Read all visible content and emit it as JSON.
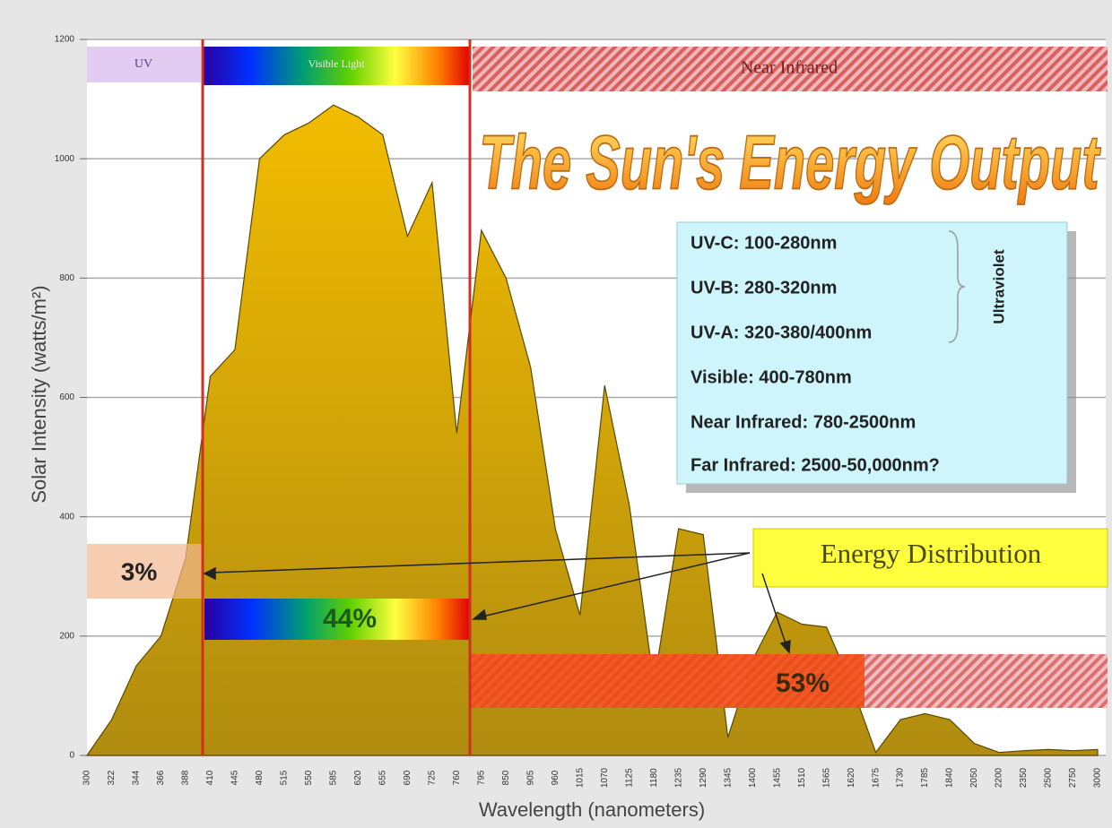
{
  "chart_data": {
    "type": "area",
    "title": "The Sun's Energy Output",
    "xlabel": "Wavelength (nanometers)",
    "ylabel": "Solar Intensity (watts/m²)",
    "color": "#d9ad00",
    "categories": [
      300,
      322,
      344,
      366,
      388,
      410,
      445,
      480,
      515,
      550,
      585,
      620,
      655,
      690,
      725,
      760,
      795,
      850,
      905,
      960,
      1015,
      1070,
      1125,
      1180,
      1235,
      1290,
      1345,
      1400,
      1455,
      1510,
      1565,
      1620,
      1675,
      1730,
      1785,
      1840,
      2050,
      2200,
      2350,
      2500,
      2750,
      3000
    ],
    "values": [
      0,
      60,
      150,
      200,
      330,
      635,
      680,
      1000,
      1040,
      1060,
      1090,
      1070,
      1040,
      870,
      960,
      540,
      880,
      800,
      650,
      380,
      235,
      620,
      420,
      120,
      380,
      370,
      30,
      160,
      240,
      220,
      215,
      120,
      5,
      60,
      70,
      60,
      20,
      5,
      8,
      10,
      8,
      10
    ],
    "ylim": [
      0,
      1200
    ],
    "yticks": [
      0,
      200,
      400,
      600,
      800,
      1000,
      1200
    ],
    "grid": true,
    "bands": [
      "UV",
      "Visible Light",
      "Near Infrared"
    ],
    "info_box": {
      "lines": [
        "UV-C: 100-280nm",
        "UV-B: 280-320nm",
        "UV-A: 320-380/400nm",
        "Visible: 400-780nm",
        "Near Infrared: 780-2500nm",
        "Far Infrared: 2500-50,000nm?"
      ],
      "group_label": "Ultraviolet"
    },
    "energy_label": "Energy Distribution",
    "shares": [
      "3%",
      "44%",
      "53%"
    ]
  }
}
